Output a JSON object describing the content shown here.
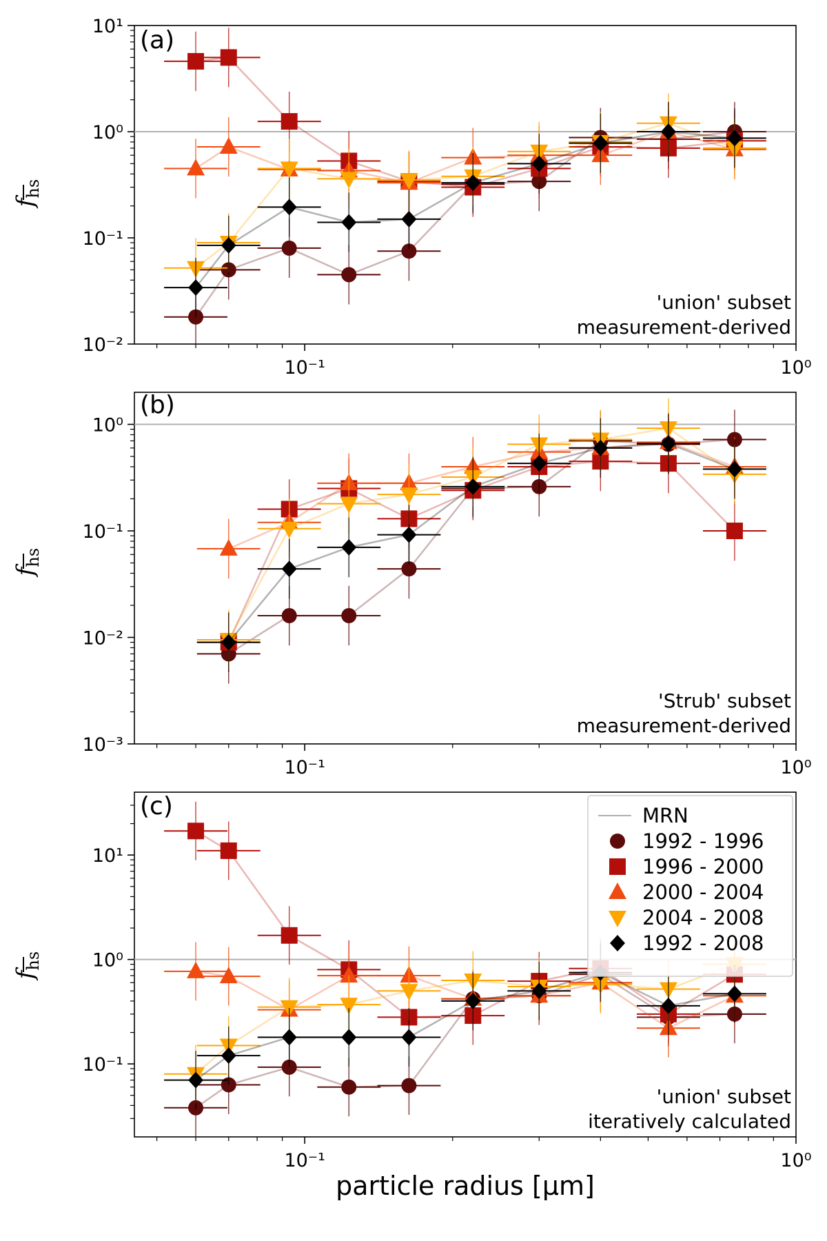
{
  "figure": {
    "xlabel": "particle radius [μm]",
    "x_tick_labels": [
      "10⁻¹",
      "10⁰"
    ],
    "y_label_main": "f",
    "y_label_sub": "hs"
  },
  "legend": {
    "entries": [
      {
        "name": "MRN",
        "kind": "line"
      },
      {
        "name": "1992 - 1996",
        "kind": "circle"
      },
      {
        "name": "1996 - 2000",
        "kind": "square"
      },
      {
        "name": "2000 - 2004",
        "kind": "triangle-up"
      },
      {
        "name": "2004 - 2008",
        "kind": "triangle-down"
      },
      {
        "name": "1992 - 2008",
        "kind": "diamond"
      }
    ]
  },
  "colors": {
    "1992 - 1996": "#5c0a0a",
    "1996 - 2000": "#b30f0a",
    "2000 - 2004": "#f04a10",
    "2004 - 2008": "#ffa500",
    "1992 - 2008": "#000000",
    "MRN": "#b0b0b0"
  },
  "chart_data": [
    {
      "type": "scatter",
      "panel_label": "(a)",
      "annotation": [
        "'union' subset",
        "measurement-derived"
      ],
      "xscale": "log",
      "yscale": "log",
      "xlim": [
        0.045,
        1.0
      ],
      "ylim": [
        0.01,
        10
      ],
      "y_tick_labels": [
        "10⁻²",
        "10⁻¹",
        "10⁰",
        "10¹"
      ],
      "reference_line": {
        "name": "MRN",
        "y": 1.0
      },
      "x": [
        0.06,
        0.07,
        0.093,
        0.123,
        0.163,
        0.22,
        0.3,
        0.4,
        0.55,
        0.75
      ],
      "series": [
        {
          "name": "1992 - 1996",
          "values": [
            0.018,
            0.05,
            0.08,
            0.045,
            0.075,
            0.32,
            0.34,
            0.88,
            0.85,
            1.0
          ]
        },
        {
          "name": "1996 - 2000",
          "values": [
            4.6,
            5.0,
            1.25,
            0.53,
            0.34,
            0.3,
            0.45,
            0.72,
            0.7,
            0.82
          ]
        },
        {
          "name": "2000 - 2004",
          "values": [
            0.45,
            0.72,
            0.44,
            0.43,
            0.33,
            0.57,
            0.6,
            0.6,
            1.0,
            0.68
          ]
        },
        {
          "name": "2004 - 2008",
          "values": [
            0.052,
            0.09,
            0.45,
            0.36,
            0.35,
            0.38,
            0.65,
            0.8,
            1.2,
            0.7
          ]
        },
        {
          "name": "1992 - 2008",
          "values": [
            0.034,
            0.085,
            0.195,
            0.14,
            0.15,
            0.33,
            0.5,
            0.78,
            1.0,
            0.87
          ]
        }
      ]
    },
    {
      "type": "scatter",
      "panel_label": "(b)",
      "annotation": [
        "'Strub' subset",
        "measurement-derived"
      ],
      "xscale": "log",
      "yscale": "log",
      "xlim": [
        0.045,
        1.0
      ],
      "ylim": [
        0.001,
        2
      ],
      "y_tick_labels": [
        "10⁻³",
        "10⁻²",
        "10⁻¹",
        "10⁰"
      ],
      "reference_line": {
        "name": "MRN",
        "y": 1.0
      },
      "x": [
        0.07,
        0.093,
        0.123,
        0.163,
        0.22,
        0.3,
        0.4,
        0.55,
        0.75
      ],
      "series": [
        {
          "name": "1992 - 1996",
          "values": [
            0.007,
            0.016,
            0.016,
            0.044,
            0.25,
            0.26,
            0.7,
            0.65,
            0.72
          ]
        },
        {
          "name": "1996 - 2000",
          "values": [
            0.009,
            0.16,
            0.25,
            0.13,
            0.24,
            0.4,
            0.45,
            0.43,
            0.1
          ]
        },
        {
          "name": "2000 - 2004",
          "values": [
            0.068,
            0.12,
            0.28,
            0.28,
            0.4,
            0.55,
            0.6,
            0.68,
            0.4
          ]
        },
        {
          "name": "2004 - 2008",
          "values": [
            0.0095,
            0.105,
            0.18,
            0.22,
            0.32,
            0.65,
            0.72,
            0.92,
            0.34
          ]
        },
        {
          "name": "1992 - 2008",
          "values": [
            0.009,
            0.044,
            0.07,
            0.092,
            0.26,
            0.43,
            0.6,
            0.66,
            0.38
          ]
        }
      ]
    },
    {
      "type": "scatter",
      "panel_label": "(c)",
      "annotation": [
        "'union' subset",
        "iteratively calculated"
      ],
      "xscale": "log",
      "yscale": "log",
      "xlim": [
        0.045,
        1.0
      ],
      "ylim": [
        0.02,
        40
      ],
      "y_tick_labels": [
        "10⁻¹",
        "10⁰",
        "10¹"
      ],
      "reference_line": {
        "name": "MRN",
        "y": 1.0
      },
      "x": [
        0.06,
        0.07,
        0.093,
        0.123,
        0.163,
        0.22,
        0.3,
        0.4,
        0.55,
        0.75
      ],
      "series": [
        {
          "name": "1992 - 1996",
          "values": [
            0.038,
            0.063,
            0.093,
            0.06,
            0.062,
            0.42,
            0.45,
            0.72,
            0.28,
            0.3
          ]
        },
        {
          "name": "1996 - 2000",
          "values": [
            17.0,
            11.0,
            1.7,
            0.8,
            0.28,
            0.29,
            0.62,
            0.82,
            0.3,
            0.72
          ]
        },
        {
          "name": "2000 - 2004",
          "values": [
            0.77,
            0.69,
            0.33,
            0.7,
            0.7,
            0.42,
            0.45,
            0.6,
            0.22,
            0.45
          ]
        },
        {
          "name": "2004 - 2008",
          "values": [
            0.08,
            0.15,
            0.35,
            0.37,
            0.5,
            0.63,
            0.55,
            0.58,
            0.52,
            0.9
          ]
        },
        {
          "name": "1992 - 2008",
          "values": [
            0.07,
            0.12,
            0.18,
            0.18,
            0.18,
            0.4,
            0.5,
            0.75,
            0.36,
            0.47
          ]
        }
      ]
    }
  ]
}
